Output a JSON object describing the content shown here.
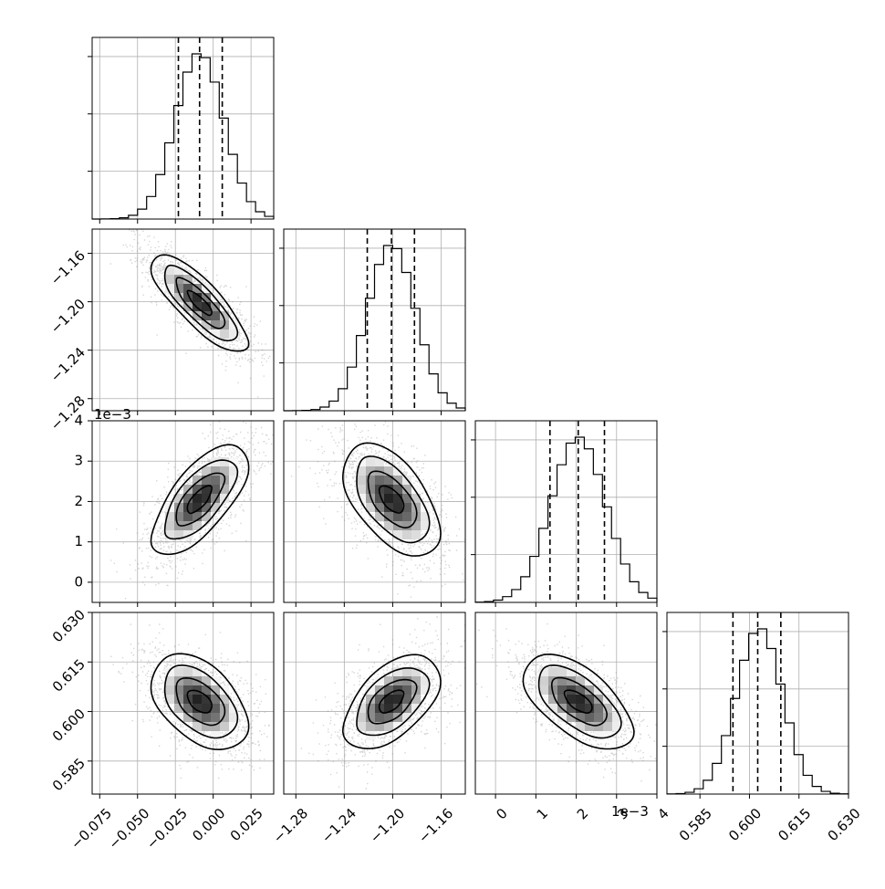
{
  "chart_data": {
    "type": "corner",
    "params": [
      {
        "range": [
          -0.08,
          0.04
        ],
        "ticks": [
          -0.075,
          -0.05,
          -0.025,
          0.0,
          0.025
        ],
        "tick_labels": [
          "−0.075",
          "−0.050",
          "−0.025",
          "0.000",
          "0.025"
        ],
        "quantiles": [
          -0.023,
          -0.009,
          0.006
        ],
        "mean": -0.009,
        "sd": 0.016
      },
      {
        "range": [
          -1.29,
          -1.14
        ],
        "ticks": [
          -1.28,
          -1.24,
          -1.2,
          -1.16
        ],
        "tick_labels": [
          "−1.28",
          "−1.24",
          "−1.20",
          "−1.16"
        ],
        "quantiles": [
          -1.221,
          -1.201,
          -1.182
        ],
        "mean": -1.201,
        "sd": 0.02
      },
      {
        "range": [
          -0.0005,
          0.004
        ],
        "ticks": [
          0,
          0.001,
          0.002,
          0.003,
          0.004
        ],
        "tick_labels": [
          "0",
          "1",
          "2",
          "3",
          "4"
        ],
        "offset_label": "1e−3",
        "quantiles": [
          0.00135,
          0.00205,
          0.0027
        ],
        "mean": 0.00205,
        "sd": 0.00068
      },
      {
        "range": [
          0.575,
          0.63
        ],
        "ticks": [
          0.585,
          0.6,
          0.615,
          0.63
        ],
        "tick_labels": [
          "0.585",
          "0.600",
          "0.615",
          "0.630"
        ],
        "quantiles": [
          0.595,
          0.6025,
          0.6095
        ],
        "mean": 0.603,
        "sd": 0.007
      }
    ],
    "correlations": [
      [
        1,
        -0.82,
        0.7,
        -0.45
      ],
      [
        -0.82,
        1,
        -0.55,
        0.55
      ],
      [
        0.7,
        -0.55,
        1,
        -0.6
      ],
      [
        -0.45,
        0.55,
        -0.6,
        1
      ]
    ],
    "contour_levels": [
      0.5,
      1.0,
      1.5,
      2.0
    ],
    "grid": true,
    "colors": {
      "points": "#8a8a8a",
      "contour": "#000000",
      "density_dark": "#000000",
      "axis": "#000000",
      "grid": "#b0b0b0"
    }
  }
}
